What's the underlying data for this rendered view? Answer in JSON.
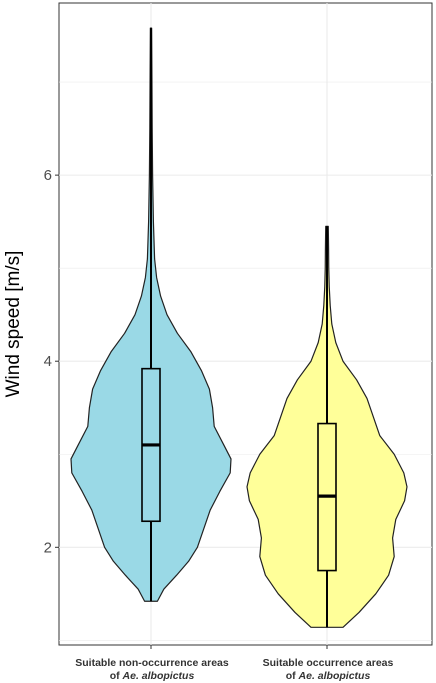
{
  "chart_data": {
    "type": "violin",
    "ylabel": "Wind speed [m/s]",
    "ylim": [
      0.95,
      7.85
    ],
    "yticks": [
      2,
      4,
      6
    ],
    "grid": true,
    "legend": "none",
    "categories": [
      {
        "line1": "Suitable non-occurrence areas",
        "line2_prefix": "of ",
        "line2_species": "Ae. albopictus"
      },
      {
        "line1": "Suitable occurrence areas",
        "line2_prefix": "of ",
        "line2_species": "Ae. albopictus"
      }
    ],
    "series": [
      {
        "color": "#9ad9e6",
        "min": 1.42,
        "q1": 2.28,
        "median": 3.1,
        "q3": 3.92,
        "max": 7.58,
        "density": [
          [
            1.42,
            0.08
          ],
          [
            1.55,
            0.16
          ],
          [
            1.7,
            0.32
          ],
          [
            1.85,
            0.47
          ],
          [
            2.0,
            0.58
          ],
          [
            2.2,
            0.66
          ],
          [
            2.4,
            0.74
          ],
          [
            2.6,
            0.86
          ],
          [
            2.8,
            0.99
          ],
          [
            2.95,
            1.0
          ],
          [
            3.1,
            0.91
          ],
          [
            3.3,
            0.79
          ],
          [
            3.5,
            0.77
          ],
          [
            3.7,
            0.73
          ],
          [
            3.9,
            0.63
          ],
          [
            4.1,
            0.5
          ],
          [
            4.3,
            0.33
          ],
          [
            4.5,
            0.2
          ],
          [
            4.7,
            0.12
          ],
          [
            4.9,
            0.07
          ],
          [
            5.1,
            0.045
          ],
          [
            5.5,
            0.03
          ],
          [
            6.0,
            0.02
          ],
          [
            6.5,
            0.015
          ],
          [
            7.0,
            0.012
          ],
          [
            7.58,
            0.008
          ]
        ]
      },
      {
        "color": "#ffff99",
        "min": 1.14,
        "q1": 1.75,
        "median": 2.55,
        "q3": 3.33,
        "max": 5.45,
        "density": [
          [
            1.14,
            0.2
          ],
          [
            1.3,
            0.4
          ],
          [
            1.5,
            0.61
          ],
          [
            1.7,
            0.77
          ],
          [
            1.9,
            0.84
          ],
          [
            2.1,
            0.82
          ],
          [
            2.3,
            0.86
          ],
          [
            2.5,
            0.97
          ],
          [
            2.65,
            1.0
          ],
          [
            2.8,
            0.96
          ],
          [
            3.0,
            0.84
          ],
          [
            3.2,
            0.66
          ],
          [
            3.4,
            0.58
          ],
          [
            3.6,
            0.5
          ],
          [
            3.8,
            0.37
          ],
          [
            4.0,
            0.2
          ],
          [
            4.2,
            0.11
          ],
          [
            4.4,
            0.06
          ],
          [
            4.6,
            0.04
          ],
          [
            4.8,
            0.028
          ],
          [
            5.0,
            0.022
          ],
          [
            5.2,
            0.02
          ],
          [
            5.45,
            0.016
          ]
        ]
      }
    ]
  }
}
